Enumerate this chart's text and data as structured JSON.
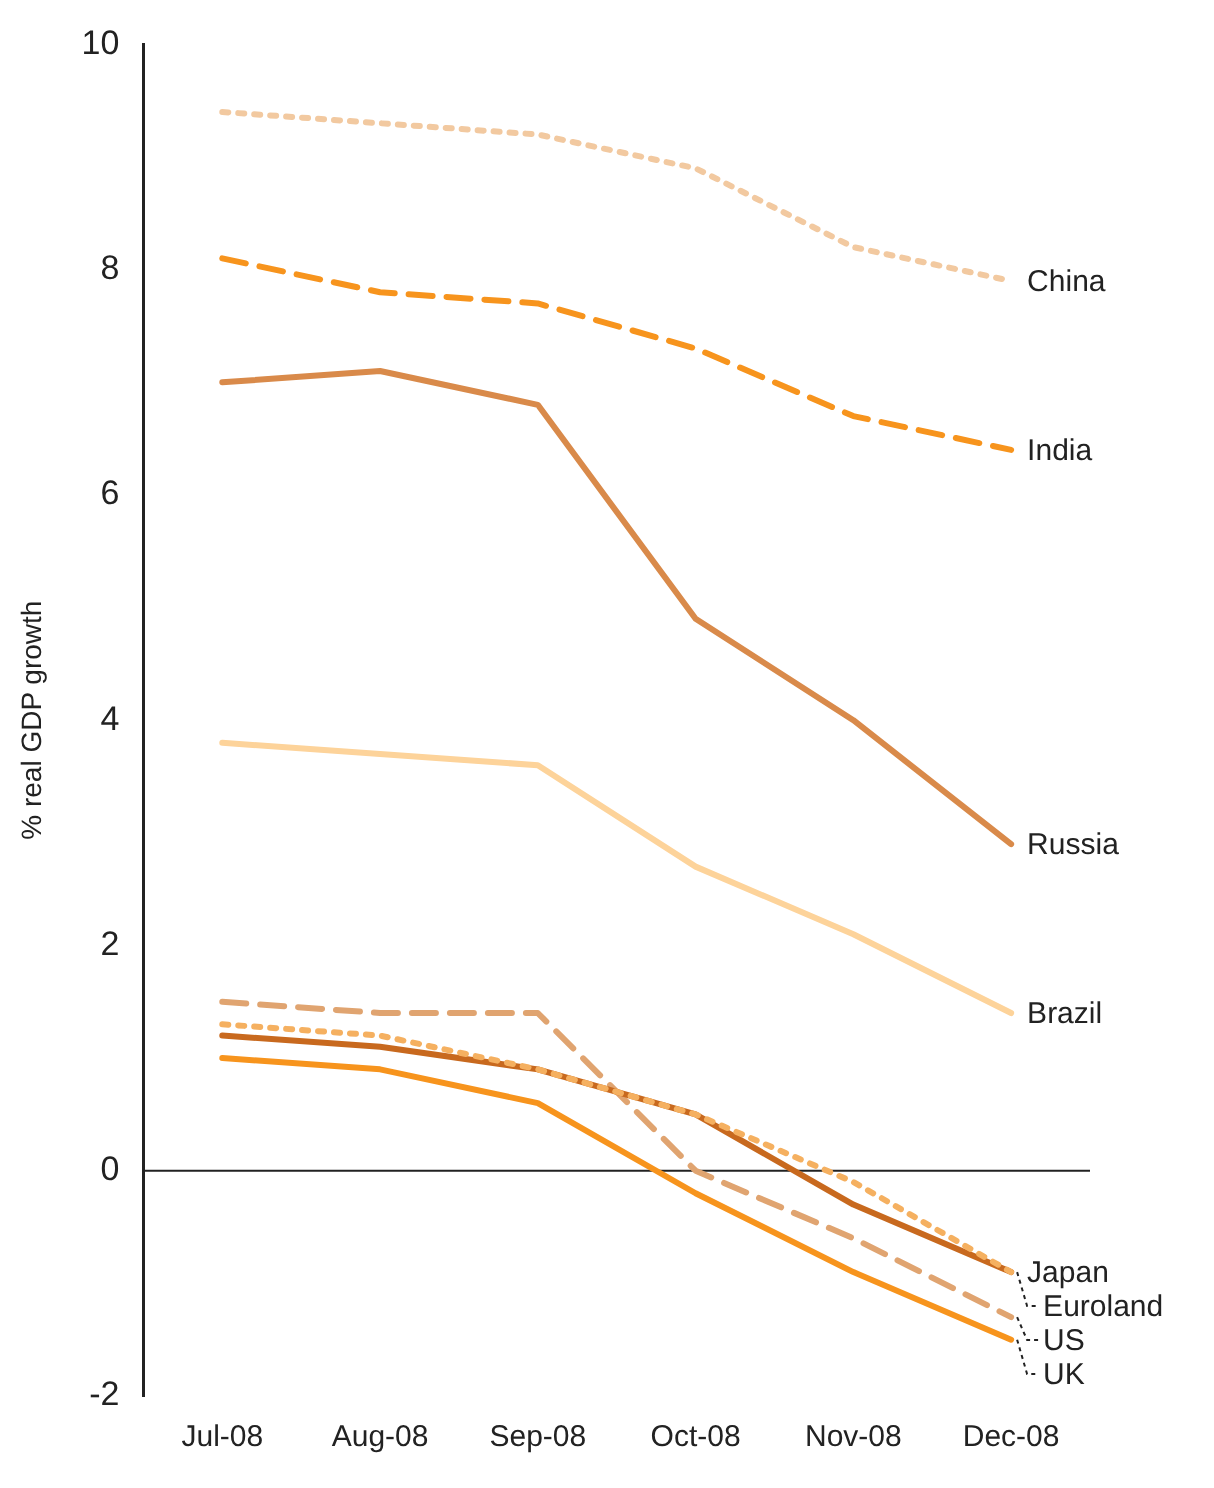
{
  "chart_data": {
    "type": "line",
    "ylabel": "% real GDP growth",
    "categories": [
      "Jul-08",
      "Aug-08",
      "Sep-08",
      "Oct-08",
      "Nov-08",
      "Dec-08"
    ],
    "series": [
      {
        "name": "China",
        "color": "#f2c9a0",
        "line_style": "dotted",
        "values": [
          9.4,
          9.3,
          9.2,
          8.9,
          8.2,
          7.9
        ]
      },
      {
        "name": "India",
        "color": "#f7941d",
        "line_style": "dashed",
        "values": [
          8.1,
          7.8,
          7.7,
          7.3,
          6.7,
          6.4
        ]
      },
      {
        "name": "Russia",
        "color": "#d98a4a",
        "line_style": "solid",
        "values": [
          7.0,
          7.1,
          6.8,
          4.9,
          4.0,
          2.9
        ]
      },
      {
        "name": "Brazil",
        "color": "#fdd39a",
        "line_style": "solid",
        "values": [
          3.8,
          3.7,
          3.6,
          2.7,
          2.1,
          1.4
        ]
      },
      {
        "name": "Japan",
        "color": "#f5b060",
        "line_style": "dotted",
        "values": [
          1.3,
          1.2,
          0.9,
          0.5,
          -0.1,
          -0.9
        ]
      },
      {
        "name": "Euroland",
        "color": "#c8691e",
        "line_style": "solid",
        "values": [
          1.2,
          1.1,
          0.9,
          0.5,
          -0.3,
          -0.9
        ]
      },
      {
        "name": "US",
        "color": "#e0a470",
        "line_style": "dashed",
        "values": [
          1.5,
          1.4,
          1.4,
          0.0,
          -0.6,
          -1.3
        ]
      },
      {
        "name": "UK",
        "color": "#f7941d",
        "line_style": "solid",
        "values": [
          1.0,
          0.9,
          0.6,
          -0.2,
          -0.9,
          -1.5
        ]
      }
    ],
    "ylim": [
      -2,
      10
    ],
    "yticks": [
      -2,
      0,
      2,
      4,
      6,
      8,
      10
    ],
    "ref_lines": [
      {
        "axis": "y",
        "value": 0,
        "color": "#222222",
        "line_style": "solid"
      }
    ],
    "grid": false,
    "legend": false,
    "marker": "none"
  }
}
